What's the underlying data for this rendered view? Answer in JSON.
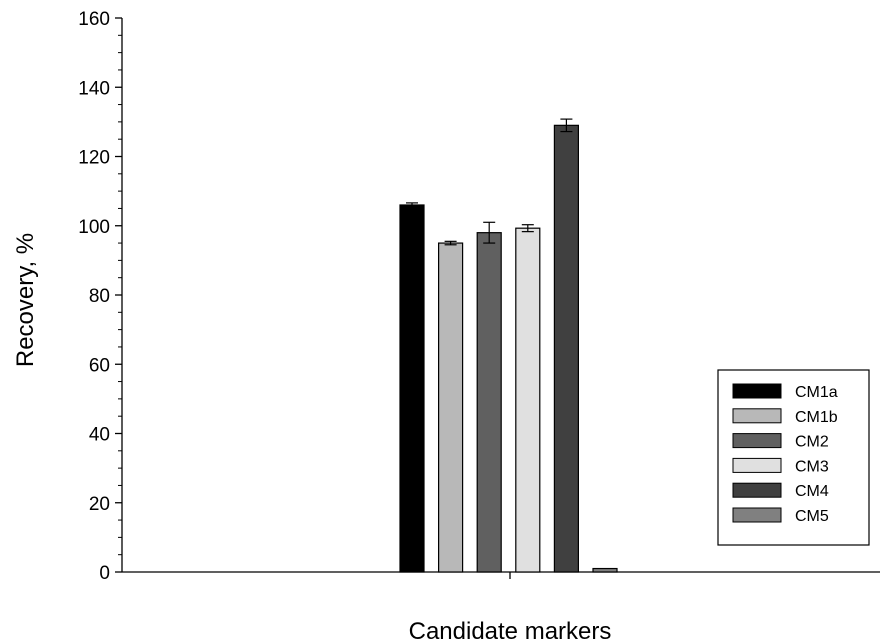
{
  "chart_data": {
    "type": "bar",
    "title": "",
    "xlabel": "Candidate markers",
    "ylabel": "Recovery, %",
    "ylim": [
      0,
      160
    ],
    "yticks": [
      0,
      20,
      40,
      60,
      80,
      100,
      120,
      140,
      160
    ],
    "grid": false,
    "legend_position": "right",
    "series": [
      {
        "name": "CM1a",
        "value": 106,
        "error": 0.6,
        "color": "#000000"
      },
      {
        "name": "CM1b",
        "value": 95,
        "error": 0.5,
        "color": "#b8b8b8"
      },
      {
        "name": "CM2",
        "value": 98,
        "error": 3.0,
        "color": "#606060"
      },
      {
        "name": "CM3",
        "value": 99.3,
        "error": 1.0,
        "color": "#e0e0e0"
      },
      {
        "name": "CM4",
        "value": 129,
        "error": 1.8,
        "color": "#404040"
      },
      {
        "name": "CM5",
        "value": 1,
        "error": 0,
        "color": "#808080"
      }
    ]
  }
}
